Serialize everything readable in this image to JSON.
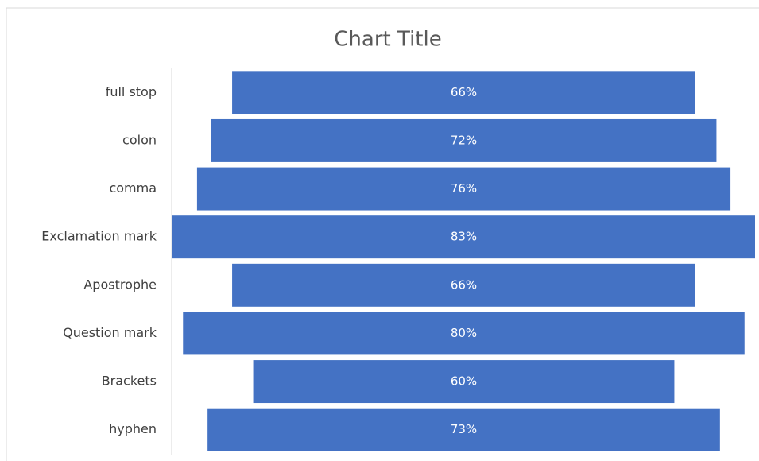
{
  "chart_data": {
    "type": "funnel",
    "title": "Chart Title",
    "categories": [
      "full stop",
      "colon",
      "comma",
      "Exclamation mark",
      "Apostrophe",
      "Question mark",
      "Brackets",
      "hyphen"
    ],
    "values": [
      66,
      72,
      76,
      83,
      66,
      80,
      60,
      73
    ],
    "value_labels": [
      "66%",
      "72%",
      "76%",
      "83%",
      "66%",
      "80%",
      "60%",
      "73%"
    ],
    "color": "#4472c4"
  }
}
